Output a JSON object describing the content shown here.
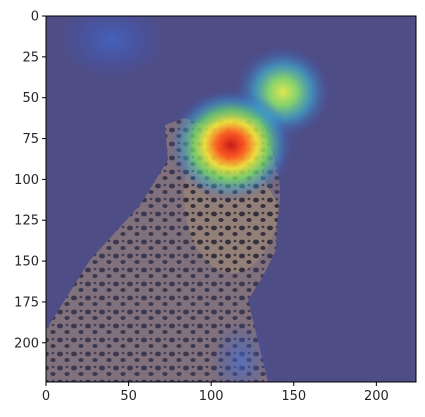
{
  "chart_data": {
    "type": "heatmap",
    "description_visible": "Grad-CAM style attention heatmap overlaid on a leopard photo",
    "x_ticks": [
      0,
      50,
      100,
      150,
      200
    ],
    "y_ticks": [
      0,
      25,
      50,
      75,
      100,
      125,
      150,
      175,
      200
    ],
    "xlim": [
      0,
      224
    ],
    "ylim": [
      224,
      0
    ],
    "image_size": [
      224,
      224
    ],
    "hotspots": [
      {
        "x": 112,
        "y": 80,
        "intensity": 1.0,
        "spread": 20
      },
      {
        "x": 143,
        "y": 47,
        "intensity": 0.55,
        "spread": 18
      },
      {
        "x": 40,
        "y": 15,
        "intensity": 0.25,
        "spread": 22
      },
      {
        "x": 118,
        "y": 215,
        "intensity": 0.3,
        "spread": 15
      }
    ],
    "colormap": "jet",
    "overlay_base_color": "#4b4a86"
  }
}
